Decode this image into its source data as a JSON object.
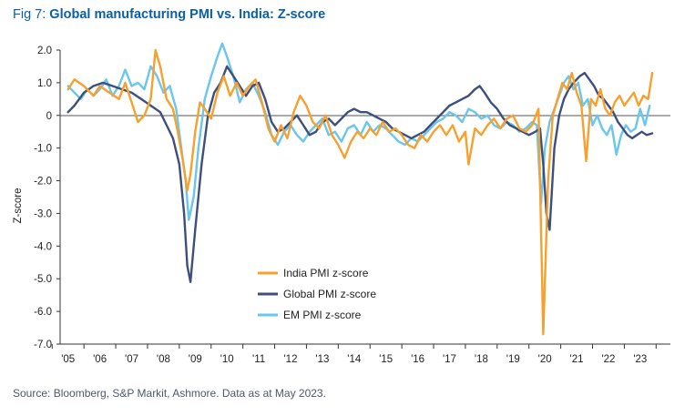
{
  "title": {
    "prefix": "Fig 7: ",
    "main": "Global manufacturing PMI vs. India: Z-score"
  },
  "source": "Source: Bloomberg, S&P Markit, Ashmore. Data as at May 2023.",
  "colors": {
    "india": "#f7a02d",
    "global": "#3d4f7d",
    "em": "#6ac6ec",
    "title": "#0b5fa5"
  },
  "chart_data": {
    "type": "line",
    "ylabel": "Z-score",
    "xlabel": "",
    "ylim": [
      -7,
      2
    ],
    "xlim": [
      2004.75,
      2023.95
    ],
    "yticks": [
      2,
      1,
      0,
      -1,
      -2,
      -3,
      -4,
      -5,
      -6,
      -7
    ],
    "ytick_labels": [
      "2.0",
      "1.0",
      "0",
      "-1.0",
      "-2.0",
      "-3.0",
      "-4.0",
      "-5.0",
      "-6.0",
      "-7.0"
    ],
    "xtick_labels": [
      "'05",
      "'06",
      "'07",
      "'08",
      "'09",
      "'10",
      "'11",
      "'12",
      "'13",
      "'14",
      "'15",
      "'16",
      "'17",
      "'18",
      "'19",
      "'20",
      "'21",
      "'22",
      "'23"
    ],
    "legend_position": "lower-middle",
    "series": [
      {
        "name": "India PMI z-score",
        "color": "#f7a02d",
        "points": [
          [
            2005.0,
            0.8
          ],
          [
            2005.2,
            1.1
          ],
          [
            2005.5,
            0.9
          ],
          [
            2005.8,
            0.6
          ],
          [
            2006.0,
            0.9
          ],
          [
            2006.3,
            0.7
          ],
          [
            2006.6,
            0.5
          ],
          [
            2006.8,
            1.0
          ],
          [
            2007.0,
            0.4
          ],
          [
            2007.2,
            -0.2
          ],
          [
            2007.4,
            0.0
          ],
          [
            2007.6,
            0.5
          ],
          [
            2007.75,
            2.0
          ],
          [
            2007.9,
            1.5
          ],
          [
            2008.1,
            0.5
          ],
          [
            2008.3,
            0.2
          ],
          [
            2008.45,
            -0.5
          ],
          [
            2008.6,
            -1.3
          ],
          [
            2008.75,
            -2.3
          ],
          [
            2008.85,
            -1.8
          ],
          [
            2009.0,
            -0.5
          ],
          [
            2009.15,
            0.4
          ],
          [
            2009.3,
            0.2
          ],
          [
            2009.5,
            -0.1
          ],
          [
            2009.7,
            0.7
          ],
          [
            2009.9,
            1.2
          ],
          [
            2010.1,
            0.6
          ],
          [
            2010.3,
            1.0
          ],
          [
            2010.5,
            0.6
          ],
          [
            2010.7,
            0.9
          ],
          [
            2010.9,
            1.1
          ],
          [
            2011.1,
            0.4
          ],
          [
            2011.3,
            -0.4
          ],
          [
            2011.5,
            -0.8
          ],
          [
            2011.7,
            -0.3
          ],
          [
            2011.9,
            -0.7
          ],
          [
            2012.1,
            0.1
          ],
          [
            2012.3,
            0.6
          ],
          [
            2012.5,
            0.3
          ],
          [
            2012.7,
            -0.2
          ],
          [
            2012.9,
            -0.4
          ],
          [
            2013.1,
            0.0
          ],
          [
            2013.3,
            -0.6
          ],
          [
            2013.5,
            -0.9
          ],
          [
            2013.7,
            -1.3
          ],
          [
            2013.9,
            -0.8
          ],
          [
            2014.1,
            -0.5
          ],
          [
            2014.3,
            -0.7
          ],
          [
            2014.5,
            -0.4
          ],
          [
            2014.7,
            -0.6
          ],
          [
            2014.9,
            -0.2
          ],
          [
            2015.1,
            -0.5
          ],
          [
            2015.3,
            -0.4
          ],
          [
            2015.5,
            -0.6
          ],
          [
            2015.7,
            -0.9
          ],
          [
            2015.9,
            -1.0
          ],
          [
            2016.1,
            -0.6
          ],
          [
            2016.3,
            -0.8
          ],
          [
            2016.5,
            -0.5
          ],
          [
            2016.7,
            -0.3
          ],
          [
            2016.9,
            -0.6
          ],
          [
            2017.1,
            -0.3
          ],
          [
            2017.3,
            -0.8
          ],
          [
            2017.5,
            -0.5
          ],
          [
            2017.6,
            -1.5
          ],
          [
            2017.8,
            -0.4
          ],
          [
            2018.0,
            -0.6
          ],
          [
            2018.2,
            -0.3
          ],
          [
            2018.4,
            -0.1
          ],
          [
            2018.6,
            -0.4
          ],
          [
            2018.8,
            -0.1
          ],
          [
            2019.0,
            0.0
          ],
          [
            2019.2,
            -0.4
          ],
          [
            2019.4,
            -0.5
          ],
          [
            2019.6,
            -0.3
          ],
          [
            2019.8,
            0.2
          ],
          [
            2019.95,
            -6.7
          ],
          [
            2020.1,
            -2.0
          ],
          [
            2020.25,
            0.0
          ],
          [
            2020.4,
            0.5
          ],
          [
            2020.55,
            1.0
          ],
          [
            2020.7,
            0.8
          ],
          [
            2020.85,
            1.3
          ],
          [
            2021.0,
            0.7
          ],
          [
            2021.15,
            0.3
          ],
          [
            2021.3,
            -1.4
          ],
          [
            2021.45,
            0.5
          ],
          [
            2021.6,
            0.3
          ],
          [
            2021.75,
            0.8
          ],
          [
            2021.9,
            0.2
          ],
          [
            2022.05,
            0.0
          ],
          [
            2022.2,
            0.4
          ],
          [
            2022.35,
            0.6
          ],
          [
            2022.5,
            0.3
          ],
          [
            2022.65,
            0.5
          ],
          [
            2022.8,
            0.7
          ],
          [
            2022.95,
            0.3
          ],
          [
            2023.1,
            0.6
          ],
          [
            2023.25,
            0.5
          ],
          [
            2023.38,
            1.3
          ]
        ]
      },
      {
        "name": "Global PMI z-score",
        "color": "#3d4f7d",
        "points": [
          [
            2005.0,
            0.1
          ],
          [
            2005.2,
            0.3
          ],
          [
            2005.5,
            0.7
          ],
          [
            2005.8,
            0.9
          ],
          [
            2006.1,
            1.0
          ],
          [
            2006.4,
            0.9
          ],
          [
            2006.7,
            0.8
          ],
          [
            2007.0,
            0.7
          ],
          [
            2007.3,
            0.5
          ],
          [
            2007.6,
            0.3
          ],
          [
            2007.9,
            0.1
          ],
          [
            2008.1,
            -0.3
          ],
          [
            2008.3,
            -0.7
          ],
          [
            2008.5,
            -1.5
          ],
          [
            2008.65,
            -3.0
          ],
          [
            2008.75,
            -4.6
          ],
          [
            2008.85,
            -5.1
          ],
          [
            2009.0,
            -3.5
          ],
          [
            2009.2,
            -1.5
          ],
          [
            2009.4,
            0.0
          ],
          [
            2009.6,
            0.7
          ],
          [
            2009.8,
            1.0
          ],
          [
            2010.0,
            1.5
          ],
          [
            2010.2,
            1.2
          ],
          [
            2010.4,
            0.9
          ],
          [
            2010.6,
            0.6
          ],
          [
            2010.8,
            0.9
          ],
          [
            2011.0,
            1.0
          ],
          [
            2011.2,
            0.5
          ],
          [
            2011.4,
            -0.2
          ],
          [
            2011.6,
            -0.5
          ],
          [
            2011.8,
            -0.4
          ],
          [
            2012.0,
            -0.2
          ],
          [
            2012.2,
            0.0
          ],
          [
            2012.4,
            -0.3
          ],
          [
            2012.6,
            -0.6
          ],
          [
            2012.8,
            -0.5
          ],
          [
            2013.0,
            -0.2
          ],
          [
            2013.2,
            -0.1
          ],
          [
            2013.4,
            -0.3
          ],
          [
            2013.6,
            -0.1
          ],
          [
            2013.8,
            0.1
          ],
          [
            2014.0,
            0.2
          ],
          [
            2014.2,
            0.1
          ],
          [
            2014.4,
            0.1
          ],
          [
            2014.6,
            0.0
          ],
          [
            2014.8,
            -0.1
          ],
          [
            2015.0,
            -0.2
          ],
          [
            2015.2,
            -0.4
          ],
          [
            2015.4,
            -0.5
          ],
          [
            2015.6,
            -0.6
          ],
          [
            2015.8,
            -0.7
          ],
          [
            2016.0,
            -0.6
          ],
          [
            2016.2,
            -0.5
          ],
          [
            2016.4,
            -0.3
          ],
          [
            2016.6,
            -0.1
          ],
          [
            2016.8,
            0.1
          ],
          [
            2017.0,
            0.3
          ],
          [
            2017.2,
            0.4
          ],
          [
            2017.4,
            0.5
          ],
          [
            2017.6,
            0.6
          ],
          [
            2017.8,
            0.8
          ],
          [
            2017.95,
            0.9
          ],
          [
            2018.1,
            0.7
          ],
          [
            2018.3,
            0.4
          ],
          [
            2018.5,
            0.2
          ],
          [
            2018.7,
            -0.1
          ],
          [
            2018.9,
            -0.3
          ],
          [
            2019.1,
            -0.4
          ],
          [
            2019.3,
            -0.5
          ],
          [
            2019.5,
            -0.6
          ],
          [
            2019.7,
            -0.5
          ],
          [
            2019.85,
            -0.4
          ],
          [
            2019.95,
            -1.5
          ],
          [
            2020.05,
            -3.0
          ],
          [
            2020.15,
            -3.5
          ],
          [
            2020.3,
            -1.0
          ],
          [
            2020.45,
            0.0
          ],
          [
            2020.6,
            0.5
          ],
          [
            2020.75,
            0.8
          ],
          [
            2020.9,
            1.0
          ],
          [
            2021.1,
            1.2
          ],
          [
            2021.25,
            1.3
          ],
          [
            2021.4,
            1.1
          ],
          [
            2021.55,
            0.9
          ],
          [
            2021.7,
            0.6
          ],
          [
            2021.85,
            0.5
          ],
          [
            2022.0,
            0.3
          ],
          [
            2022.15,
            0.1
          ],
          [
            2022.3,
            -0.2
          ],
          [
            2022.45,
            -0.4
          ],
          [
            2022.6,
            -0.6
          ],
          [
            2022.75,
            -0.7
          ],
          [
            2022.9,
            -0.6
          ],
          [
            2023.05,
            -0.5
          ],
          [
            2023.2,
            -0.6
          ],
          [
            2023.38,
            -0.55
          ]
        ]
      },
      {
        "name": "EM PMI z-score",
        "color": "#6ac6ec",
        "points": [
          [
            2005.0,
            0.9
          ],
          [
            2005.2,
            0.7
          ],
          [
            2005.4,
            0.5
          ],
          [
            2005.6,
            0.8
          ],
          [
            2005.8,
            0.6
          ],
          [
            2006.0,
            0.8
          ],
          [
            2006.2,
            1.1
          ],
          [
            2006.4,
            0.6
          ],
          [
            2006.6,
            0.9
          ],
          [
            2006.8,
            1.4
          ],
          [
            2007.0,
            0.9
          ],
          [
            2007.2,
            1.0
          ],
          [
            2007.4,
            0.8
          ],
          [
            2007.6,
            1.5
          ],
          [
            2007.8,
            1.2
          ],
          [
            2008.0,
            0.7
          ],
          [
            2008.2,
            0.9
          ],
          [
            2008.4,
            0.2
          ],
          [
            2008.55,
            -0.9
          ],
          [
            2008.7,
            -2.0
          ],
          [
            2008.8,
            -3.2
          ],
          [
            2008.95,
            -2.5
          ],
          [
            2009.1,
            -1.0
          ],
          [
            2009.3,
            0.5
          ],
          [
            2009.5,
            1.2
          ],
          [
            2009.7,
            1.8
          ],
          [
            2009.85,
            2.2
          ],
          [
            2010.0,
            1.8
          ],
          [
            2010.2,
            1.2
          ],
          [
            2010.4,
            0.4
          ],
          [
            2010.6,
            0.8
          ],
          [
            2010.8,
            1.0
          ],
          [
            2011.0,
            0.6
          ],
          [
            2011.2,
            0.1
          ],
          [
            2011.4,
            -0.6
          ],
          [
            2011.6,
            -0.9
          ],
          [
            2011.8,
            -0.5
          ],
          [
            2012.0,
            -0.3
          ],
          [
            2012.2,
            -0.6
          ],
          [
            2012.4,
            -0.8
          ],
          [
            2012.6,
            -0.5
          ],
          [
            2012.8,
            -0.3
          ],
          [
            2013.0,
            -0.1
          ],
          [
            2013.2,
            -0.6
          ],
          [
            2013.4,
            -0.5
          ],
          [
            2013.6,
            -0.8
          ],
          [
            2013.8,
            -0.4
          ],
          [
            2014.0,
            -0.3
          ],
          [
            2014.2,
            -0.6
          ],
          [
            2014.4,
            -0.2
          ],
          [
            2014.6,
            -0.5
          ],
          [
            2014.8,
            -0.3
          ],
          [
            2015.0,
            -0.4
          ],
          [
            2015.2,
            -0.6
          ],
          [
            2015.4,
            -0.8
          ],
          [
            2015.6,
            -0.9
          ],
          [
            2015.8,
            -0.7
          ],
          [
            2016.0,
            -0.8
          ],
          [
            2016.2,
            -0.6
          ],
          [
            2016.4,
            -0.4
          ],
          [
            2016.6,
            -0.2
          ],
          [
            2016.8,
            -0.1
          ],
          [
            2017.0,
            0.1
          ],
          [
            2017.2,
            0.0
          ],
          [
            2017.4,
            -0.2
          ],
          [
            2017.6,
            0.2
          ],
          [
            2017.8,
            0.1
          ],
          [
            2018.0,
            -0.1
          ],
          [
            2018.2,
            0.0
          ],
          [
            2018.4,
            -0.3
          ],
          [
            2018.6,
            -0.4
          ],
          [
            2018.8,
            -0.2
          ],
          [
            2019.0,
            -0.3
          ],
          [
            2019.2,
            -0.5
          ],
          [
            2019.4,
            -0.4
          ],
          [
            2019.6,
            -0.2
          ],
          [
            2019.75,
            -0.3
          ],
          [
            2019.88,
            -2.7
          ],
          [
            2020.0,
            -1.0
          ],
          [
            2020.15,
            -0.2
          ],
          [
            2020.3,
            0.2
          ],
          [
            2020.45,
            0.6
          ],
          [
            2020.6,
            1.0
          ],
          [
            2020.75,
            1.2
          ],
          [
            2020.9,
            0.8
          ],
          [
            2021.05,
            1.0
          ],
          [
            2021.2,
            0.3
          ],
          [
            2021.35,
            0.5
          ],
          [
            2021.5,
            -0.3
          ],
          [
            2021.65,
            0.0
          ],
          [
            2021.8,
            -0.4
          ],
          [
            2021.95,
            -0.6
          ],
          [
            2022.1,
            -0.3
          ],
          [
            2022.25,
            -1.2
          ],
          [
            2022.4,
            -0.6
          ],
          [
            2022.55,
            -0.3
          ],
          [
            2022.7,
            -0.5
          ],
          [
            2022.85,
            -0.4
          ],
          [
            2023.0,
            0.2
          ],
          [
            2023.15,
            -0.3
          ],
          [
            2023.3,
            0.3
          ]
        ]
      }
    ]
  }
}
